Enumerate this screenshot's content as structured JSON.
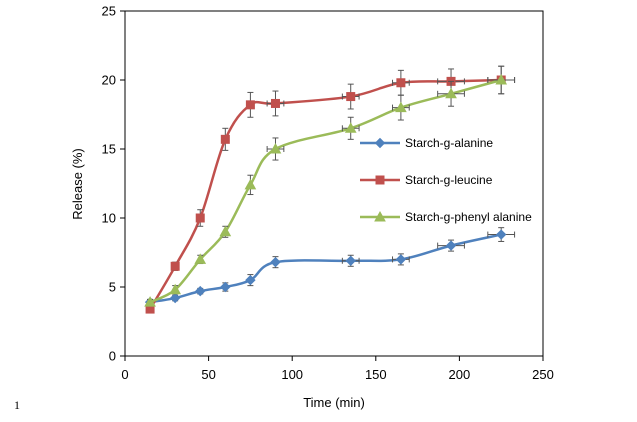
{
  "page_number": "1",
  "chart_data": {
    "type": "line",
    "title": "",
    "xlabel": "Time (min)",
    "ylabel": "Release (%)",
    "xlim": [
      0,
      250
    ],
    "ylim": [
      0,
      25
    ],
    "xticks": [
      "0",
      "50",
      "100",
      "150",
      "200",
      "250"
    ],
    "yticks": [
      "0",
      "5",
      "10",
      "15",
      "20",
      "25"
    ],
    "grid": false,
    "legend_position": "center-right",
    "series": [
      {
        "name": "Starch-g-alanine",
        "color": "#4f81bd",
        "marker": "diamond",
        "x": [
          15,
          30,
          45,
          60,
          75,
          90,
          135,
          165,
          195,
          225
        ],
        "values": [
          3.9,
          4.2,
          4.7,
          5.0,
          5.5,
          6.8,
          6.9,
          7.0,
          8.0,
          8.8
        ],
        "xerr": [
          0,
          0,
          0,
          0,
          0,
          0,
          5,
          5,
          8,
          8
        ],
        "yerr": [
          0.2,
          0.2,
          0.2,
          0.3,
          0.4,
          0.4,
          0.4,
          0.4,
          0.4,
          0.5
        ]
      },
      {
        "name": "Starch-g-leucine",
        "color": "#c0504d",
        "marker": "square",
        "x": [
          15,
          30,
          45,
          60,
          75,
          90,
          135,
          165,
          195,
          225
        ],
        "values": [
          3.4,
          6.5,
          10.0,
          15.7,
          18.2,
          18.3,
          18.8,
          19.8,
          19.9,
          20.0
        ],
        "xerr": [
          0,
          0,
          0,
          0,
          0,
          5,
          5,
          5,
          8,
          8
        ],
        "yerr": [
          0.2,
          0.3,
          0.6,
          0.8,
          0.9,
          0.9,
          0.9,
          0.9,
          0.9,
          1.0
        ]
      },
      {
        "name": "Starch-g-phenyl alanine",
        "color": "#9bbb59",
        "marker": "triangle",
        "x": [
          15,
          30,
          45,
          60,
          75,
          90,
          135,
          165,
          195,
          225
        ],
        "values": [
          3.9,
          4.8,
          7.0,
          9.0,
          12.4,
          15.0,
          16.5,
          18.0,
          19.0,
          20.0
        ],
        "xerr": [
          0,
          0,
          0,
          0,
          0,
          5,
          5,
          5,
          8,
          8
        ],
        "yerr": [
          0.2,
          0.3,
          0.3,
          0.4,
          0.7,
          0.8,
          0.8,
          0.9,
          0.9,
          1.0
        ]
      }
    ]
  }
}
